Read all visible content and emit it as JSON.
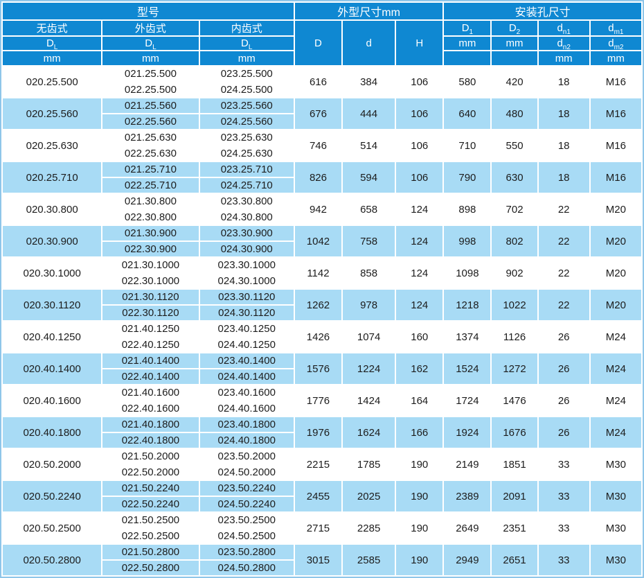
{
  "colors": {
    "header_bg": "#0f88d2",
    "row_alt_bg": "#a8dbf5",
    "row_bg": "#ffffff",
    "header_text": "#ffffff",
    "body_text": "#1c1c1c",
    "grid_line": "#ffffff",
    "outer_border": "#8fc6e9"
  },
  "table": {
    "header": {
      "model_group_title": "型号",
      "outer_group_title": "外型尺寸mm",
      "mount_group_title": "安装孔尺寸",
      "model_columns": [
        "无齿式",
        "外齿式",
        "内齿式"
      ],
      "model_dim": {
        "base": "D",
        "sub": "L"
      },
      "unit": "mm",
      "outer_columns": [
        "D",
        "d",
        "H"
      ],
      "mount_d1": {
        "base": "D",
        "sub": "1"
      },
      "mount_d2": {
        "base": "D",
        "sub": "2"
      },
      "mount_dn1": {
        "base": "d",
        "sub": "n1"
      },
      "mount_dn2": {
        "base": "d",
        "sub": "n2"
      },
      "mount_dm1": {
        "base": "d",
        "sub": "m1"
      },
      "mount_dm2": {
        "base": "d",
        "sub": "m2"
      }
    },
    "rows": [
      {
        "toothless": "020.25.500",
        "external": [
          "021.25.500",
          "022.25.500"
        ],
        "internal": [
          "023.25.500",
          "024.25.500"
        ],
        "D": "616",
        "d": "384",
        "H": "106",
        "D1": "580",
        "D2": "420",
        "dn": "18",
        "dm": "M16"
      },
      {
        "toothless": "020.25.560",
        "external": [
          "021.25.560",
          "022.25.560"
        ],
        "internal": [
          "023.25.560",
          "024.25.560"
        ],
        "D": "676",
        "d": "444",
        "H": "106",
        "D1": "640",
        "D2": "480",
        "dn": "18",
        "dm": "M16"
      },
      {
        "toothless": "020.25.630",
        "external": [
          "021.25.630",
          "022.25.630"
        ],
        "internal": [
          "023.25.630",
          "024.25.630"
        ],
        "D": "746",
        "d": "514",
        "H": "106",
        "D1": "710",
        "D2": "550",
        "dn": "18",
        "dm": "M16"
      },
      {
        "toothless": "020.25.710",
        "external": [
          "021.25.710",
          "022.25.710"
        ],
        "internal": [
          "023.25.710",
          "024.25.710"
        ],
        "D": "826",
        "d": "594",
        "H": "106",
        "D1": "790",
        "D2": "630",
        "dn": "18",
        "dm": "M16"
      },
      {
        "toothless": "020.30.800",
        "external": [
          "021.30.800",
          "022.30.800"
        ],
        "internal": [
          "023.30.800",
          "024.30.800"
        ],
        "D": "942",
        "d": "658",
        "H": "124",
        "D1": "898",
        "D2": "702",
        "dn": "22",
        "dm": "M20"
      },
      {
        "toothless": "020.30.900",
        "external": [
          "021.30.900",
          "022.30.900"
        ],
        "internal": [
          "023.30.900",
          "024.30.900"
        ],
        "D": "1042",
        "d": "758",
        "H": "124",
        "D1": "998",
        "D2": "802",
        "dn": "22",
        "dm": "M20"
      },
      {
        "toothless": "020.30.1000",
        "external": [
          "021.30.1000",
          "022.30.1000"
        ],
        "internal": [
          "023.30.1000",
          "024.30.1000"
        ],
        "D": "1142",
        "d": "858",
        "H": "124",
        "D1": "1098",
        "D2": "902",
        "dn": "22",
        "dm": "M20"
      },
      {
        "toothless": "020.30.1120",
        "external": [
          "021.30.1120",
          "022.30.1120"
        ],
        "internal": [
          "023.30.1120",
          "024.30.1120"
        ],
        "D": "1262",
        "d": "978",
        "H": "124",
        "D1": "1218",
        "D2": "1022",
        "dn": "22",
        "dm": "M20"
      },
      {
        "toothless": "020.40.1250",
        "external": [
          "021.40.1250",
          "022.40.1250"
        ],
        "internal": [
          "023.40.1250",
          "024.40.1250"
        ],
        "D": "1426",
        "d": "1074",
        "H": "160",
        "D1": "1374",
        "D2": "1126",
        "dn": "26",
        "dm": "M24"
      },
      {
        "toothless": "020.40.1400",
        "external": [
          "021.40.1400",
          "022.40.1400"
        ],
        "internal": [
          "023.40.1400",
          "024.40.1400"
        ],
        "D": "1576",
        "d": "1224",
        "H": "162",
        "D1": "1524",
        "D2": "1272",
        "dn": "26",
        "dm": "M24"
      },
      {
        "toothless": "020.40.1600",
        "external": [
          "021.40.1600",
          "022.40.1600"
        ],
        "internal": [
          "023.40.1600",
          "024.40.1600"
        ],
        "D": "1776",
        "d": "1424",
        "H": "164",
        "D1": "1724",
        "D2": "1476",
        "dn": "26",
        "dm": "M24"
      },
      {
        "toothless": "020.40.1800",
        "external": [
          "021.40.1800",
          "022.40.1800"
        ],
        "internal": [
          "023.40.1800",
          "024.40.1800"
        ],
        "D": "1976",
        "d": "1624",
        "H": "166",
        "D1": "1924",
        "D2": "1676",
        "dn": "26",
        "dm": "M24"
      },
      {
        "toothless": "020.50.2000",
        "external": [
          "021.50.2000",
          "022.50.2000"
        ],
        "internal": [
          "023.50.2000",
          "024.50.2000"
        ],
        "D": "2215",
        "d": "1785",
        "H": "190",
        "D1": "2149",
        "D2": "1851",
        "dn": "33",
        "dm": "M30"
      },
      {
        "toothless": "020.50.2240",
        "external": [
          "021.50.2240",
          "022.50.2240"
        ],
        "internal": [
          "023.50.2240",
          "024.50.2240"
        ],
        "D": "2455",
        "d": "2025",
        "H": "190",
        "D1": "2389",
        "D2": "2091",
        "dn": "33",
        "dm": "M30"
      },
      {
        "toothless": "020.50.2500",
        "external": [
          "021.50.2500",
          "022.50.2500"
        ],
        "internal": [
          "023.50.2500",
          "024.50.2500"
        ],
        "D": "2715",
        "d": "2285",
        "H": "190",
        "D1": "2649",
        "D2": "2351",
        "dn": "33",
        "dm": "M30"
      },
      {
        "toothless": "020.50.2800",
        "external": [
          "021.50.2800",
          "022.50.2800"
        ],
        "internal": [
          "023.50.2800",
          "024.50.2800"
        ],
        "D": "3015",
        "d": "2585",
        "H": "190",
        "D1": "2949",
        "D2": "2651",
        "dn": "33",
        "dm": "M30"
      }
    ]
  }
}
